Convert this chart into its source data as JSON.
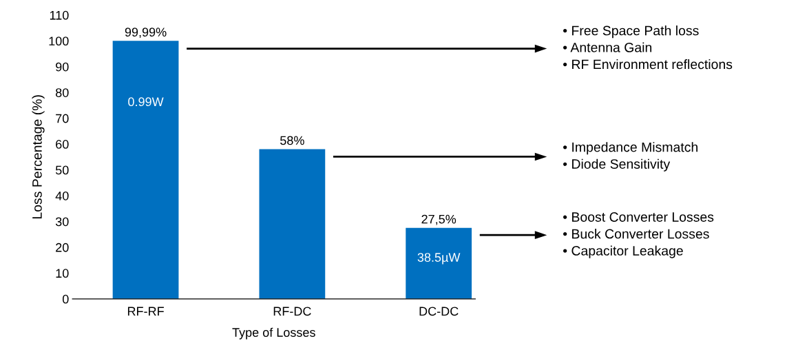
{
  "chart_data": {
    "type": "bar",
    "xlabel": "Type of Losses",
    "ylabel": "Loss Percentage (%)",
    "categories": [
      "RF-RF",
      "RF-DC",
      "DC-DC"
    ],
    "values": [
      99.99,
      58,
      27.5
    ],
    "color": "#0070c0",
    "value_labels": [
      "99,99%",
      "58%",
      "27,5%"
    ],
    "ylim": [
      0,
      110
    ],
    "yticks": [
      0,
      10,
      20,
      30,
      40,
      50,
      60,
      70,
      80,
      90,
      100,
      110
    ],
    "grid": false,
    "annotations": [
      "0.99W",
      "38.5µW",
      "• Free Space Path loss\n• Antenna Gain\n• RF Environment reflections",
      "• Impedance Mismatch\n• Diode Sensitivity",
      "• Boost Converter Losses\n• Buck Converter Losses\n• Capacitor Leakage"
    ]
  }
}
